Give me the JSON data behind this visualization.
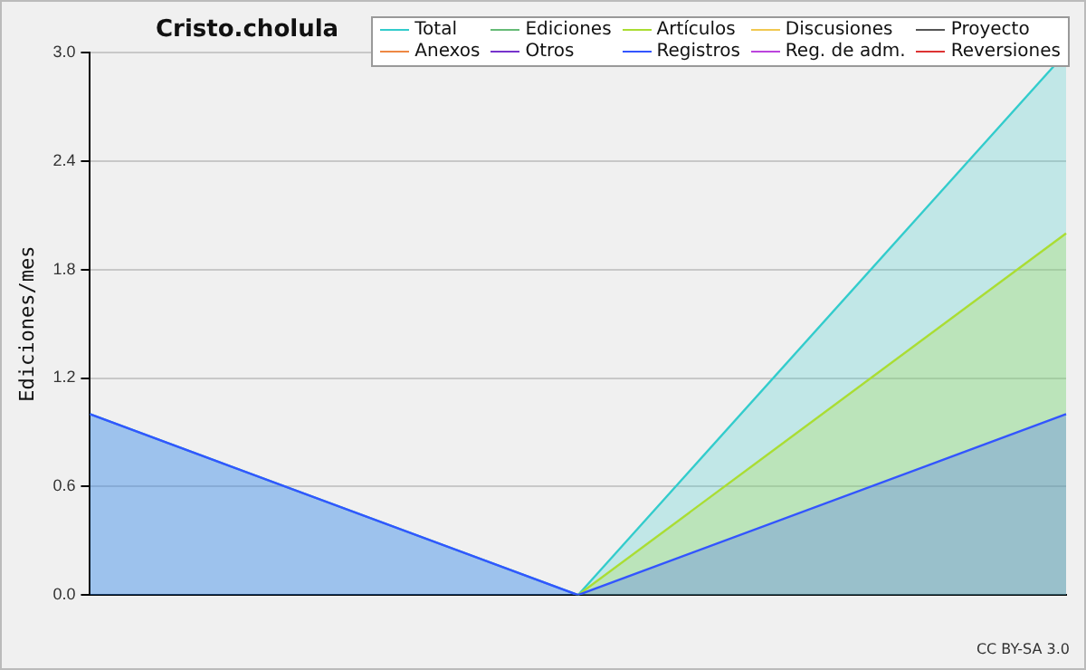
{
  "chart_data": {
    "type": "area",
    "title": "Cristo.cholula",
    "ylabel": "Ediciones/mes",
    "categories": [
      null,
      null,
      null
    ],
    "series": [
      {
        "name": "Total",
        "color": "#33cccc",
        "values": [
          1,
          0,
          3
        ]
      },
      {
        "name": "Ediciones",
        "color": "#66bb77",
        "values": [
          null,
          null,
          null
        ]
      },
      {
        "name": "Artículos",
        "color": "#aadd33",
        "values": [
          null,
          0,
          2
        ]
      },
      {
        "name": "Discusiones",
        "color": "#f0c850",
        "values": [
          null,
          null,
          null
        ]
      },
      {
        "name": "Proyecto",
        "color": "#555555",
        "values": [
          null,
          null,
          null
        ]
      },
      {
        "name": "Anexos",
        "color": "#ee8844",
        "values": [
          null,
          null,
          null
        ]
      },
      {
        "name": "Otros",
        "color": "#7733cc",
        "values": [
          null,
          null,
          null
        ]
      },
      {
        "name": "Registros",
        "color": "#3355ff",
        "values": [
          1,
          0,
          1
        ]
      },
      {
        "name": "Reg. de adm.",
        "color": "#bb44dd",
        "values": [
          null,
          null,
          null
        ]
      },
      {
        "name": "Reversiones",
        "color": "#dd3333",
        "values": [
          null,
          null,
          null
        ]
      }
    ],
    "ylim": [
      0,
      3
    ],
    "yticks": [
      {
        "value": 0,
        "label": "0.0"
      },
      {
        "value": 0.6,
        "label": "0.6"
      },
      {
        "value": 1.2,
        "label": "1.2"
      },
      {
        "value": 1.8,
        "label": "1.8"
      },
      {
        "value": 2.4,
        "label": "2.4"
      },
      {
        "value": 3,
        "label": "3.0"
      }
    ],
    "grid": "y",
    "legend": "top right",
    "marker": "none",
    "annotations": [
      "CC BY-SA 3.0"
    ]
  }
}
